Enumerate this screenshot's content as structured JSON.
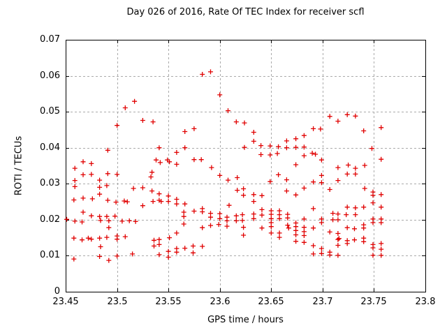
{
  "chart_data": {
    "type": "scatter",
    "title": "Day 026 of 2016, Rate Of TEC Index for receiver scfl",
    "xlabel": "GPS time / hours",
    "ylabel": "ROTI / TECUs",
    "xlim": [
      23.45,
      23.8
    ],
    "ylim": [
      0,
      0.07
    ],
    "xticks": [
      23.45,
      23.5,
      23.55,
      23.6,
      23.65,
      23.7,
      23.75,
      23.8
    ],
    "xtick_labels": [
      "23.45",
      "23.5",
      "23.55",
      "23.6",
      "23.65",
      "23.7",
      "23.75",
      "23.8"
    ],
    "yticks": [
      0,
      0.01,
      0.02,
      0.03,
      0.04,
      0.05,
      0.06,
      0.07
    ],
    "ytick_labels": [
      "0",
      "0.01",
      "0.02",
      "0.03",
      "0.04",
      "0.05",
      "0.06",
      "0.07"
    ],
    "grid": true,
    "legend": "none",
    "marker": {
      "shape": "plus",
      "color": "#e00000",
      "size": 7
    },
    "axis_color": "#000000",
    "grid_color": "#aaaaaa",
    "series": [
      {
        "name": "ROTI",
        "points": [
          [
            23.517,
            0.0529
          ],
          [
            23.508,
            0.0511
          ],
          [
            23.525,
            0.0476
          ],
          [
            23.535,
            0.0472
          ],
          [
            23.5,
            0.0462
          ],
          [
            23.491,
            0.0393
          ],
          [
            23.467,
            0.0361
          ],
          [
            23.475,
            0.0356
          ],
          [
            23.583,
            0.0604
          ],
          [
            23.591,
            0.0611
          ],
          [
            23.6,
            0.0547
          ],
          [
            23.608,
            0.0503
          ],
          [
            23.616,
            0.0472
          ],
          [
            23.624,
            0.0469
          ],
          [
            23.575,
            0.0453
          ],
          [
            23.566,
            0.0445
          ],
          [
            23.541,
            0.04
          ],
          [
            23.566,
            0.04
          ],
          [
            23.558,
            0.0387
          ],
          [
            23.538,
            0.0366
          ],
          [
            23.549,
            0.0366
          ],
          [
            23.551,
            0.0361
          ],
          [
            23.542,
            0.0359
          ],
          [
            23.575,
            0.0367
          ],
          [
            23.582,
            0.0367
          ],
          [
            23.558,
            0.0354
          ],
          [
            23.707,
            0.0487
          ],
          [
            23.633,
            0.0443
          ],
          [
            23.691,
            0.0453
          ],
          [
            23.698,
            0.0452
          ],
          [
            23.682,
            0.0434
          ],
          [
            23.674,
            0.0425
          ],
          [
            23.633,
            0.0418
          ],
          [
            23.665,
            0.0419
          ],
          [
            23.624,
            0.0401
          ],
          [
            23.64,
            0.0406
          ],
          [
            23.649,
            0.0405
          ],
          [
            23.657,
            0.0403
          ],
          [
            23.665,
            0.04
          ],
          [
            23.674,
            0.0401
          ],
          [
            23.682,
            0.0402
          ],
          [
            23.64,
            0.0381
          ],
          [
            23.649,
            0.038
          ],
          [
            23.656,
            0.0384
          ],
          [
            23.682,
            0.0378
          ],
          [
            23.69,
            0.0385
          ],
          [
            23.693,
            0.0382
          ],
          [
            23.699,
            0.0366
          ],
          [
            23.674,
            0.0353
          ],
          [
            23.724,
            0.0492
          ],
          [
            23.732,
            0.0488
          ],
          [
            23.715,
            0.0474
          ],
          [
            23.74,
            0.0447
          ],
          [
            23.757,
            0.0456
          ],
          [
            23.748,
            0.0398
          ],
          [
            23.757,
            0.0368
          ],
          [
            23.725,
            0.0352
          ],
          [
            23.741,
            0.0351
          ],
          [
            23.715,
            0.0345
          ],
          [
            23.732,
            0.0343
          ],
          [
            23.459,
            0.0343
          ],
          [
            23.467,
            0.0325
          ],
          [
            23.475,
            0.0326
          ],
          [
            23.491,
            0.0328
          ],
          [
            23.5,
            0.0326
          ],
          [
            23.533,
            0.0319
          ],
          [
            23.459,
            0.0309
          ],
          [
            23.483,
            0.031
          ],
          [
            23.459,
            0.0292
          ],
          [
            23.483,
            0.029
          ],
          [
            23.49,
            0.0295
          ],
          [
            23.525,
            0.0289
          ],
          [
            23.516,
            0.0287
          ],
          [
            23.483,
            0.0271
          ],
          [
            23.458,
            0.0255
          ],
          [
            23.467,
            0.026
          ],
          [
            23.476,
            0.0258
          ],
          [
            23.491,
            0.0254
          ],
          [
            23.499,
            0.0249
          ],
          [
            23.507,
            0.0252
          ],
          [
            23.51,
            0.025
          ],
          [
            23.525,
            0.0239
          ],
          [
            23.534,
            0.0332
          ],
          [
            23.534,
            0.028
          ],
          [
            23.535,
            0.0251
          ],
          [
            23.467,
            0.0221
          ],
          [
            23.475,
            0.0211
          ],
          [
            23.483,
            0.0209
          ],
          [
            23.49,
            0.0209
          ],
          [
            23.498,
            0.021
          ],
          [
            23.451,
            0.0201
          ],
          [
            23.459,
            0.0196
          ],
          [
            23.466,
            0.0194
          ],
          [
            23.484,
            0.0198
          ],
          [
            23.492,
            0.0197
          ],
          [
            23.505,
            0.0196
          ],
          [
            23.512,
            0.0197
          ],
          [
            23.518,
            0.0195
          ],
          [
            23.492,
            0.0178
          ],
          [
            23.458,
            0.0149
          ],
          [
            23.466,
            0.0144
          ],
          [
            23.472,
            0.0149
          ],
          [
            23.475,
            0.0146
          ],
          [
            23.483,
            0.0149
          ],
          [
            23.49,
            0.0151
          ],
          [
            23.5,
            0.0155
          ],
          [
            23.5,
            0.0146
          ],
          [
            23.484,
            0.0125
          ],
          [
            23.508,
            0.0153
          ],
          [
            23.483,
            0.0098
          ],
          [
            23.458,
            0.0091
          ],
          [
            23.492,
            0.0087
          ],
          [
            23.5,
            0.0099
          ],
          [
            23.515,
            0.0105
          ],
          [
            23.592,
            0.0345
          ],
          [
            23.6,
            0.0323
          ],
          [
            23.608,
            0.031
          ],
          [
            23.617,
            0.0317
          ],
          [
            23.541,
            0.0272
          ],
          [
            23.541,
            0.0254
          ],
          [
            23.543,
            0.0251
          ],
          [
            23.55,
            0.0266
          ],
          [
            23.55,
            0.0251
          ],
          [
            23.558,
            0.0257
          ],
          [
            23.558,
            0.0244
          ],
          [
            23.566,
            0.0244
          ],
          [
            23.617,
            0.0282
          ],
          [
            23.609,
            0.024
          ],
          [
            23.565,
            0.0221
          ],
          [
            23.565,
            0.0209
          ],
          [
            23.575,
            0.0224
          ],
          [
            23.583,
            0.0231
          ],
          [
            23.583,
            0.0222
          ],
          [
            23.591,
            0.0218
          ],
          [
            23.591,
            0.0207
          ],
          [
            23.6,
            0.0217
          ],
          [
            23.6,
            0.0203
          ],
          [
            23.607,
            0.0207
          ],
          [
            23.607,
            0.0197
          ],
          [
            23.616,
            0.0211
          ],
          [
            23.616,
            0.0197
          ],
          [
            23.583,
            0.0178
          ],
          [
            23.591,
            0.0184
          ],
          [
            23.599,
            0.0187
          ],
          [
            23.607,
            0.0182
          ],
          [
            23.565,
            0.0188
          ],
          [
            23.558,
            0.0163
          ],
          [
            23.551,
            0.015
          ],
          [
            23.541,
            0.0145
          ],
          [
            23.541,
            0.0131
          ],
          [
            23.536,
            0.0143
          ],
          [
            23.536,
            0.0127
          ],
          [
            23.55,
            0.0112
          ],
          [
            23.558,
            0.012
          ],
          [
            23.558,
            0.011
          ],
          [
            23.566,
            0.0121
          ],
          [
            23.574,
            0.0127
          ],
          [
            23.574,
            0.0108
          ],
          [
            23.583,
            0.0126
          ],
          [
            23.541,
            0.0103
          ],
          [
            23.55,
            0.0096
          ],
          [
            23.657,
            0.0325
          ],
          [
            23.649,
            0.0306
          ],
          [
            23.665,
            0.0311
          ],
          [
            23.665,
            0.028
          ],
          [
            23.674,
            0.0269
          ],
          [
            23.682,
            0.0288
          ],
          [
            23.691,
            0.0305
          ],
          [
            23.699,
            0.0323
          ],
          [
            23.699,
            0.0303
          ],
          [
            23.707,
            0.0284
          ],
          [
            23.623,
            0.0286
          ],
          [
            23.623,
            0.0268
          ],
          [
            23.633,
            0.027
          ],
          [
            23.633,
            0.0251
          ],
          [
            23.641,
            0.0267
          ],
          [
            23.641,
            0.0228
          ],
          [
            23.633,
            0.0216
          ],
          [
            23.633,
            0.0203
          ],
          [
            23.622,
            0.0214
          ],
          [
            23.622,
            0.0198
          ],
          [
            23.623,
            0.0179
          ],
          [
            23.623,
            0.0157
          ],
          [
            23.641,
            0.0213
          ],
          [
            23.641,
            0.0177
          ],
          [
            23.65,
            0.0225
          ],
          [
            23.65,
            0.0215
          ],
          [
            23.65,
            0.0203
          ],
          [
            23.65,
            0.0192
          ],
          [
            23.65,
            0.0181
          ],
          [
            23.65,
            0.0163
          ],
          [
            23.658,
            0.0225
          ],
          [
            23.658,
            0.0214
          ],
          [
            23.658,
            0.0203
          ],
          [
            23.658,
            0.0163
          ],
          [
            23.658,
            0.0151
          ],
          [
            23.666,
            0.0215
          ],
          [
            23.666,
            0.0205
          ],
          [
            23.666,
            0.0185
          ],
          [
            23.667,
            0.0177
          ],
          [
            23.674,
            0.0191
          ],
          [
            23.674,
            0.0181
          ],
          [
            23.674,
            0.017
          ],
          [
            23.674,
            0.0158
          ],
          [
            23.674,
            0.014
          ],
          [
            23.682,
            0.0202
          ],
          [
            23.682,
            0.0179
          ],
          [
            23.682,
            0.0167
          ],
          [
            23.682,
            0.0156
          ],
          [
            23.691,
            0.0231
          ],
          [
            23.691,
            0.0177
          ],
          [
            23.682,
            0.0137
          ],
          [
            23.691,
            0.0128
          ],
          [
            23.699,
            0.0202
          ],
          [
            23.699,
            0.0192
          ],
          [
            23.699,
            0.012
          ],
          [
            23.699,
            0.0106
          ],
          [
            23.707,
            0.0166
          ],
          [
            23.707,
            0.011
          ],
          [
            23.707,
            0.0102
          ],
          [
            23.691,
            0.0105
          ],
          [
            23.724,
            0.0327
          ],
          [
            23.732,
            0.0327
          ],
          [
            23.715,
            0.0309
          ],
          [
            23.741,
            0.0287
          ],
          [
            23.749,
            0.0277
          ],
          [
            23.749,
            0.0268
          ],
          [
            23.757,
            0.027
          ],
          [
            23.749,
            0.0247
          ],
          [
            23.757,
            0.0235
          ],
          [
            23.724,
            0.0235
          ],
          [
            23.732,
            0.0233
          ],
          [
            23.74,
            0.0235
          ],
          [
            23.715,
            0.0216
          ],
          [
            23.715,
            0.02
          ],
          [
            23.71,
            0.0218
          ],
          [
            23.71,
            0.02
          ],
          [
            23.723,
            0.0214
          ],
          [
            23.732,
            0.0214
          ],
          [
            23.749,
            0.0202
          ],
          [
            23.749,
            0.0192
          ],
          [
            23.757,
            0.0202
          ],
          [
            23.757,
            0.0192
          ],
          [
            23.74,
            0.0186
          ],
          [
            23.74,
            0.0177
          ],
          [
            23.724,
            0.0178
          ],
          [
            23.731,
            0.0175
          ],
          [
            23.715,
            0.0162
          ],
          [
            23.715,
            0.0145
          ],
          [
            23.716,
            0.0148
          ],
          [
            23.715,
            0.0129
          ],
          [
            23.724,
            0.0142
          ],
          [
            23.724,
            0.0134
          ],
          [
            23.731,
            0.0144
          ],
          [
            23.74,
            0.0149
          ],
          [
            23.74,
            0.0139
          ],
          [
            23.749,
            0.0131
          ],
          [
            23.749,
            0.0122
          ],
          [
            23.757,
            0.0134
          ],
          [
            23.757,
            0.0118
          ],
          [
            23.757,
            0.0101
          ],
          [
            23.749,
            0.0101
          ],
          [
            23.715,
            0.0101
          ]
        ]
      }
    ]
  }
}
